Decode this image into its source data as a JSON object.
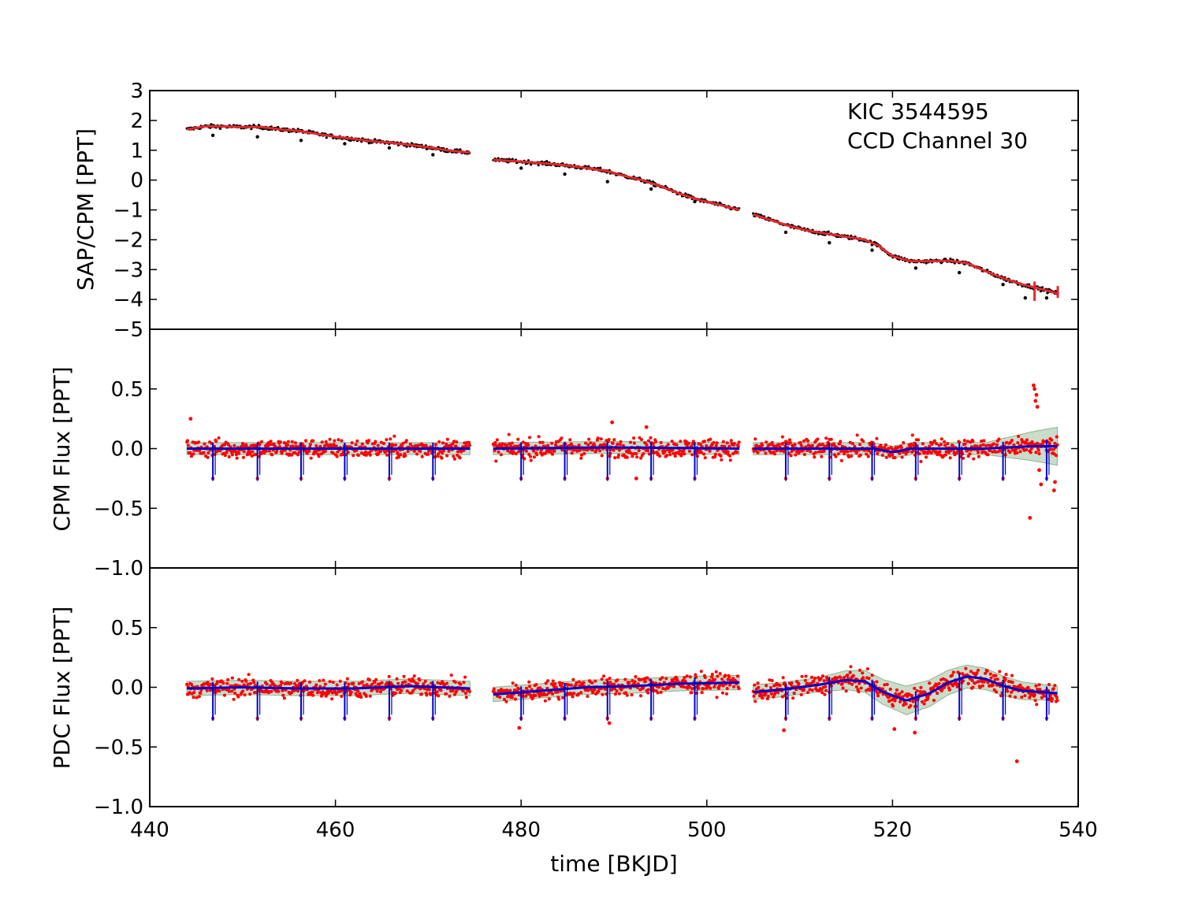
{
  "chart_data": [
    {
      "type": "scatter",
      "panel": "top",
      "ylabel": "SAP/CPM [PPT]",
      "ylim": [
        -5,
        3
      ],
      "yticks": [
        3,
        2,
        1,
        0,
        -1,
        -2,
        -3,
        -4,
        -5
      ],
      "ytick_labels": [
        "3",
        "2",
        "1",
        "0",
        "−1",
        "−2",
        "−3",
        "−4",
        "−5"
      ],
      "annotations": [
        "KIC 3544595",
        "CCD Channel 30"
      ],
      "colors": {
        "data": "#000000",
        "model": "#e8262c"
      },
      "segments": [
        {
          "x": [
            444,
            446,
            448,
            450,
            452,
            454,
            456,
            458,
            460,
            462,
            464,
            466,
            468,
            470,
            472,
            474.5
          ],
          "y": [
            1.7,
            1.8,
            1.8,
            1.78,
            1.78,
            1.7,
            1.65,
            1.55,
            1.45,
            1.38,
            1.3,
            1.25,
            1.18,
            1.1,
            1.0,
            0.92
          ]
        },
        {
          "x": [
            477,
            480,
            483,
            486,
            489,
            491,
            493,
            495,
            497,
            499,
            501,
            503.5
          ],
          "y": [
            0.68,
            0.62,
            0.55,
            0.45,
            0.32,
            0.15,
            0.0,
            -0.2,
            -0.45,
            -0.65,
            -0.8,
            -1.0
          ]
        },
        {
          "x": [
            505,
            507,
            509,
            511,
            513,
            515,
            517,
            518.5,
            520,
            522,
            524,
            526,
            528,
            530,
            532,
            534,
            536,
            537.8
          ],
          "y": [
            -1.15,
            -1.35,
            -1.55,
            -1.7,
            -1.8,
            -1.9,
            -2.0,
            -2.2,
            -2.55,
            -2.72,
            -2.72,
            -2.7,
            -2.78,
            -3.05,
            -3.3,
            -3.5,
            -3.65,
            -3.8
          ]
        }
      ],
      "outliers": [
        [
          446.8,
          1.5
        ],
        [
          451.6,
          1.45
        ],
        [
          456.3,
          1.33
        ],
        [
          461,
          1.22
        ],
        [
          465.8,
          1.08
        ],
        [
          470.5,
          0.85
        ],
        [
          480,
          0.4
        ],
        [
          484.7,
          0.2
        ],
        [
          489.3,
          -0.05
        ],
        [
          494,
          -0.3
        ],
        [
          498.7,
          -0.72
        ],
        [
          508.5,
          -1.75
        ],
        [
          513.2,
          -2.1
        ],
        [
          517.8,
          -2.35
        ],
        [
          522.5,
          -2.95
        ],
        [
          527.2,
          -3.1
        ],
        [
          531.9,
          -3.5
        ],
        [
          534.3,
          -3.95
        ],
        [
          536.6,
          -3.95
        ]
      ],
      "model_spikes": [
        [
          535.3,
          -3.4,
          -4.05
        ],
        [
          537.8,
          -3.55,
          -3.95
        ]
      ]
    },
    {
      "type": "scatter",
      "panel": "middle",
      "ylabel": "CPM Flux [PPT]",
      "ylim": [
        -1.0,
        1.0
      ],
      "yticks": [
        0.5,
        0.0,
        -0.5,
        -1.0
      ],
      "ytick_labels": [
        "0.5",
        "0.0",
        "−0.5",
        "−1.0"
      ],
      "colors": {
        "data": "#ff0000",
        "model": "#0000cc",
        "band": "#b8d0b8"
      },
      "model": {
        "x": [
          444,
          460,
          474.5,
          477,
          490,
          503.5,
          505,
          515,
          518,
          520,
          522,
          530,
          535,
          537.8
        ],
        "y": [
          0.0,
          0.0,
          0.0,
          0.0,
          0.01,
          0.0,
          0.0,
          0.0,
          0.0,
          -0.03,
          0.0,
          0.0,
          0.02,
          0.02
        ]
      },
      "band_width": [
        [
          444,
          0.05
        ],
        [
          530,
          0.05
        ],
        [
          537.8,
          0.16
        ]
      ],
      "transits": [
        446.8,
        451.6,
        456.3,
        461.0,
        465.8,
        470.5,
        480.0,
        484.7,
        489.3,
        494.0,
        498.7,
        508.5,
        513.2,
        517.8,
        522.5,
        527.2,
        531.9,
        536.6
      ],
      "transit_depth": -0.27,
      "outliers": [
        [
          444.4,
          0.25
        ],
        [
          489.8,
          0.22
        ],
        [
          493.5,
          0.18
        ],
        [
          492.4,
          -0.25
        ],
        [
          535.2,
          0.53
        ],
        [
          535.3,
          0.5
        ],
        [
          535.5,
          0.45
        ],
        [
          535.4,
          0.4
        ],
        [
          535.6,
          0.35
        ],
        [
          535.8,
          -0.18
        ],
        [
          536.0,
          -0.3
        ],
        [
          534.8,
          -0.58
        ],
        [
          537.4,
          -0.35
        ],
        [
          537.5,
          -0.28
        ]
      ]
    },
    {
      "type": "scatter",
      "panel": "bottom",
      "ylabel": "PDC Flux [PPT]",
      "xlabel": "time [BKJD]",
      "xlim": [
        440,
        540
      ],
      "xticks": [
        440,
        460,
        480,
        500,
        520,
        540
      ],
      "ylim": [
        -1.0,
        1.0
      ],
      "yticks": [
        0.5,
        0.0,
        -0.5,
        -1.0
      ],
      "ytick_labels": [
        "0.5",
        "0.0",
        "−0.5",
        "−1.0"
      ],
      "colors": {
        "data": "#ff0000",
        "model": "#0000cc",
        "band": "#b8d0b8"
      },
      "model": {
        "x": [
          444,
          450,
          456,
          462,
          468,
          474.5,
          477,
          482,
          487,
          492,
          497,
          503.5,
          505,
          508,
          512,
          515,
          517,
          519,
          521.5,
          524,
          526,
          528,
          530,
          532,
          534,
          536,
          537.8
        ],
        "y": [
          -0.01,
          0.0,
          -0.01,
          -0.01,
          0.01,
          -0.01,
          -0.06,
          -0.03,
          0.0,
          0.01,
          0.03,
          0.04,
          -0.04,
          -0.02,
          0.02,
          0.06,
          0.05,
          -0.04,
          -0.11,
          -0.05,
          0.04,
          0.09,
          0.07,
          0.01,
          -0.03,
          -0.04,
          -0.05
        ]
      },
      "band_width": [
        [
          444,
          0.06
        ],
        [
          512,
          0.06
        ],
        [
          521.5,
          0.12
        ],
        [
          537.8,
          0.06
        ]
      ],
      "transits": [
        446.8,
        451.6,
        456.3,
        461.0,
        465.8,
        470.5,
        480.0,
        484.7,
        489.3,
        494.0,
        498.7,
        508.5,
        513.2,
        517.8,
        522.5,
        527.2,
        531.9,
        536.6
      ],
      "transit_depth": -0.28,
      "outliers": [
        [
          479.8,
          -0.34
        ],
        [
          489.5,
          -0.3
        ],
        [
          508.3,
          -0.36
        ],
        [
          522.4,
          -0.38
        ],
        [
          533.4,
          -0.62
        ],
        [
          520.2,
          -0.35
        ]
      ]
    }
  ]
}
